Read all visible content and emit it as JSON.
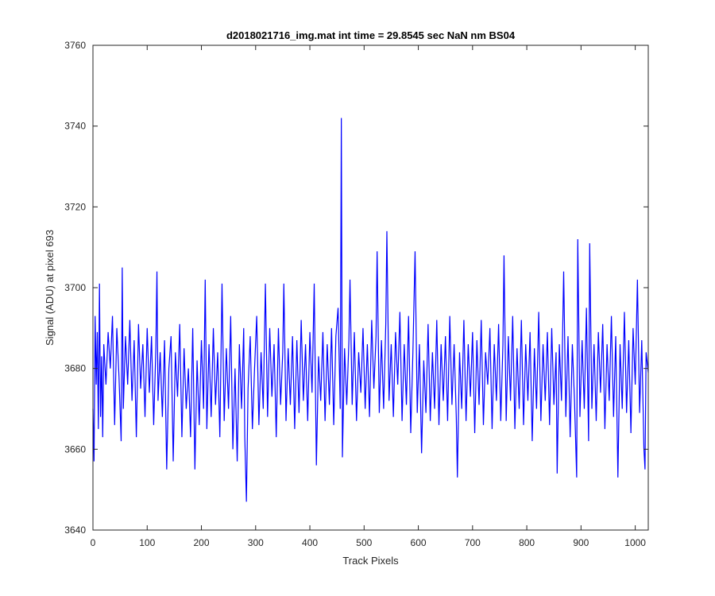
{
  "chart_data": {
    "type": "line",
    "title": "d2018021716_img.mat int time = 29.8545 sec  NaN nm BS04",
    "xlabel": "Track Pixels",
    "ylabel": "Signal (ADU) at pixel 693",
    "xlim": [
      0,
      1024
    ],
    "ylim": [
      3640,
      3760
    ],
    "xticks": [
      0,
      100,
      200,
      300,
      400,
      500,
      600,
      700,
      800,
      900,
      1000
    ],
    "yticks": [
      3640,
      3660,
      3680,
      3700,
      3720,
      3740,
      3760
    ],
    "grid": false,
    "series": [
      {
        "color": "#0000ff",
        "points": [
          [
            0,
            3670
          ],
          [
            2,
            3657
          ],
          [
            4,
            3693
          ],
          [
            6,
            3676
          ],
          [
            8,
            3689
          ],
          [
            10,
            3665
          ],
          [
            12,
            3701
          ],
          [
            14,
            3668
          ],
          [
            16,
            3683
          ],
          [
            18,
            3663
          ],
          [
            20,
            3686
          ],
          [
            24,
            3676
          ],
          [
            28,
            3689
          ],
          [
            32,
            3680
          ],
          [
            36,
            3693
          ],
          [
            40,
            3666
          ],
          [
            44,
            3690
          ],
          [
            48,
            3678
          ],
          [
            52,
            3662
          ],
          [
            54,
            3705
          ],
          [
            56,
            3670
          ],
          [
            60,
            3688
          ],
          [
            64,
            3676
          ],
          [
            68,
            3692
          ],
          [
            72,
            3672
          ],
          [
            76,
            3687
          ],
          [
            80,
            3663
          ],
          [
            84,
            3691
          ],
          [
            88,
            3675
          ],
          [
            92,
            3686
          ],
          [
            96,
            3668
          ],
          [
            100,
            3690
          ],
          [
            104,
            3674
          ],
          [
            108,
            3688
          ],
          [
            112,
            3666
          ],
          [
            116,
            3685
          ],
          [
            118,
            3704
          ],
          [
            120,
            3672
          ],
          [
            124,
            3684
          ],
          [
            128,
            3668
          ],
          [
            132,
            3687
          ],
          [
            136,
            3655
          ],
          [
            140,
            3680
          ],
          [
            144,
            3688
          ],
          [
            148,
            3657
          ],
          [
            152,
            3684
          ],
          [
            156,
            3673
          ],
          [
            160,
            3691
          ],
          [
            164,
            3663
          ],
          [
            168,
            3685
          ],
          [
            172,
            3670
          ],
          [
            176,
            3680
          ],
          [
            180,
            3663
          ],
          [
            184,
            3690
          ],
          [
            188,
            3655
          ],
          [
            192,
            3682
          ],
          [
            196,
            3666
          ],
          [
            200,
            3687
          ],
          [
            204,
            3670
          ],
          [
            207,
            3702
          ],
          [
            210,
            3665
          ],
          [
            214,
            3686
          ],
          [
            218,
            3668
          ],
          [
            222,
            3690
          ],
          [
            226,
            3671
          ],
          [
            230,
            3684
          ],
          [
            234,
            3663
          ],
          [
            238,
            3701
          ],
          [
            242,
            3667
          ],
          [
            246,
            3685
          ],
          [
            250,
            3670
          ],
          [
            254,
            3693
          ],
          [
            258,
            3660
          ],
          [
            262,
            3680
          ],
          [
            266,
            3657
          ],
          [
            270,
            3686
          ],
          [
            274,
            3670
          ],
          [
            278,
            3690
          ],
          [
            280,
            3663
          ],
          [
            283,
            3647
          ],
          [
            286,
            3675
          ],
          [
            290,
            3688
          ],
          [
            294,
            3665
          ],
          [
            298,
            3680
          ],
          [
            302,
            3693
          ],
          [
            306,
            3666
          ],
          [
            310,
            3684
          ],
          [
            314,
            3670
          ],
          [
            318,
            3701
          ],
          [
            322,
            3668
          ],
          [
            326,
            3690
          ],
          [
            330,
            3673
          ],
          [
            334,
            3686
          ],
          [
            338,
            3663
          ],
          [
            342,
            3690
          ],
          [
            346,
            3671
          ],
          [
            350,
            3684
          ],
          [
            352,
            3701
          ],
          [
            356,
            3667
          ],
          [
            360,
            3685
          ],
          [
            364,
            3671
          ],
          [
            368,
            3688
          ],
          [
            372,
            3665
          ],
          [
            376,
            3687
          ],
          [
            380,
            3669
          ],
          [
            384,
            3692
          ],
          [
            388,
            3672
          ],
          [
            392,
            3686
          ],
          [
            396,
            3667
          ],
          [
            400,
            3689
          ],
          [
            404,
            3674
          ],
          [
            408,
            3701
          ],
          [
            412,
            3656
          ],
          [
            416,
            3683
          ],
          [
            420,
            3672
          ],
          [
            424,
            3689
          ],
          [
            428,
            3667
          ],
          [
            432,
            3686
          ],
          [
            436,
            3671
          ],
          [
            440,
            3690
          ],
          [
            444,
            3666
          ],
          [
            448,
            3688
          ],
          [
            452,
            3695
          ],
          [
            456,
            3670
          ],
          [
            458,
            3742
          ],
          [
            460,
            3658
          ],
          [
            464,
            3685
          ],
          [
            468,
            3671
          ],
          [
            472,
            3687
          ],
          [
            474,
            3702
          ],
          [
            478,
            3671
          ],
          [
            482,
            3689
          ],
          [
            486,
            3667
          ],
          [
            490,
            3684
          ],
          [
            494,
            3674
          ],
          [
            498,
            3690
          ],
          [
            502,
            3670
          ],
          [
            506,
            3686
          ],
          [
            510,
            3668
          ],
          [
            514,
            3692
          ],
          [
            518,
            3675
          ],
          [
            522,
            3688
          ],
          [
            524,
            3709
          ],
          [
            528,
            3669
          ],
          [
            532,
            3687
          ],
          [
            536,
            3670
          ],
          [
            540,
            3691
          ],
          [
            542,
            3714
          ],
          [
            546,
            3672
          ],
          [
            550,
            3686
          ],
          [
            554,
            3668
          ],
          [
            558,
            3689
          ],
          [
            562,
            3676
          ],
          [
            566,
            3694
          ],
          [
            570,
            3667
          ],
          [
            574,
            3686
          ],
          [
            578,
            3671
          ],
          [
            582,
            3693
          ],
          [
            586,
            3664
          ],
          [
            590,
            3684
          ],
          [
            594,
            3709
          ],
          [
            598,
            3669
          ],
          [
            602,
            3686
          ],
          [
            606,
            3659
          ],
          [
            610,
            3682
          ],
          [
            614,
            3669
          ],
          [
            618,
            3691
          ],
          [
            622,
            3667
          ],
          [
            626,
            3684
          ],
          [
            630,
            3670
          ],
          [
            634,
            3692
          ],
          [
            638,
            3666
          ],
          [
            642,
            3686
          ],
          [
            646,
            3672
          ],
          [
            650,
            3688
          ],
          [
            654,
            3667
          ],
          [
            658,
            3693
          ],
          [
            662,
            3671
          ],
          [
            666,
            3686
          ],
          [
            670,
            3668
          ],
          [
            672,
            3653
          ],
          [
            676,
            3684
          ],
          [
            680,
            3670
          ],
          [
            684,
            3692
          ],
          [
            688,
            3667
          ],
          [
            692,
            3686
          ],
          [
            696,
            3673
          ],
          [
            700,
            3689
          ],
          [
            704,
            3664
          ],
          [
            708,
            3687
          ],
          [
            712,
            3671
          ],
          [
            716,
            3692
          ],
          [
            720,
            3666
          ],
          [
            724,
            3684
          ],
          [
            728,
            3676
          ],
          [
            732,
            3690
          ],
          [
            736,
            3665
          ],
          [
            740,
            3686
          ],
          [
            744,
            3672
          ],
          [
            748,
            3691
          ],
          [
            752,
            3667
          ],
          [
            756,
            3686
          ],
          [
            758,
            3708
          ],
          [
            762,
            3667
          ],
          [
            766,
            3688
          ],
          [
            770,
            3672
          ],
          [
            774,
            3693
          ],
          [
            778,
            3665
          ],
          [
            782,
            3685
          ],
          [
            786,
            3670
          ],
          [
            790,
            3692
          ],
          [
            794,
            3666
          ],
          [
            798,
            3686
          ],
          [
            802,
            3672
          ],
          [
            806,
            3689
          ],
          [
            810,
            3662
          ],
          [
            814,
            3685
          ],
          [
            818,
            3670
          ],
          [
            822,
            3694
          ],
          [
            826,
            3667
          ],
          [
            830,
            3686
          ],
          [
            834,
            3672
          ],
          [
            838,
            3689
          ],
          [
            842,
            3666
          ],
          [
            846,
            3690
          ],
          [
            850,
            3671
          ],
          [
            854,
            3684
          ],
          [
            856,
            3654
          ],
          [
            860,
            3686
          ],
          [
            864,
            3672
          ],
          [
            868,
            3704
          ],
          [
            872,
            3668
          ],
          [
            876,
            3688
          ],
          [
            880,
            3663
          ],
          [
            884,
            3686
          ],
          [
            888,
            3672
          ],
          [
            892,
            3653
          ],
          [
            894,
            3712
          ],
          [
            898,
            3668
          ],
          [
            902,
            3687
          ],
          [
            906,
            3670
          ],
          [
            910,
            3695
          ],
          [
            914,
            3662
          ],
          [
            916,
            3711
          ],
          [
            920,
            3670
          ],
          [
            924,
            3686
          ],
          [
            928,
            3667
          ],
          [
            932,
            3689
          ],
          [
            936,
            3674
          ],
          [
            940,
            3691
          ],
          [
            944,
            3665
          ],
          [
            948,
            3686
          ],
          [
            952,
            3672
          ],
          [
            956,
            3693
          ],
          [
            960,
            3668
          ],
          [
            964,
            3688
          ],
          [
            968,
            3653
          ],
          [
            972,
            3686
          ],
          [
            976,
            3670
          ],
          [
            980,
            3694
          ],
          [
            984,
            3669
          ],
          [
            988,
            3687
          ],
          [
            992,
            3664
          ],
          [
            996,
            3690
          ],
          [
            1000,
            3676
          ],
          [
            1004,
            3702
          ],
          [
            1008,
            3669
          ],
          [
            1012,
            3687
          ],
          [
            1016,
            3660
          ],
          [
            1018,
            3655
          ],
          [
            1020,
            3684
          ],
          [
            1024,
            3679
          ]
        ]
      }
    ]
  }
}
